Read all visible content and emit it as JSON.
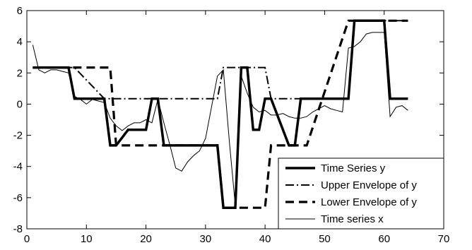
{
  "chart_data": {
    "type": "line",
    "title": "",
    "xlabel": "",
    "ylabel": "",
    "xlim": [
      0,
      70
    ],
    "ylim": [
      -8,
      6
    ],
    "xticks": [
      "0",
      "10",
      "20",
      "30",
      "40",
      "50",
      "60",
      "70"
    ],
    "yticks": [
      "6",
      "4",
      "2",
      "0",
      "-2",
      "-4",
      "-6",
      "-8"
    ],
    "grid": false,
    "legend_position": "bottom-right",
    "series": [
      {
        "name": "Time Series y",
        "style": "solid-thick",
        "color": "#000000",
        "x": [
          1,
          7,
          8,
          13,
          14,
          15,
          17,
          20,
          21,
          22,
          23,
          32,
          33,
          35,
          36,
          37,
          38,
          39,
          40,
          41,
          44,
          45,
          46,
          47,
          54,
          55,
          60,
          61,
          64
        ],
        "y": [
          2.35,
          2.35,
          0.35,
          0.35,
          -2.65,
          -2.65,
          -1.65,
          -1.65,
          0.35,
          0.35,
          -2.65,
          -2.65,
          -6.65,
          -6.65,
          2.35,
          2.35,
          -1.65,
          -1.65,
          0.35,
          0.35,
          -2.65,
          -2.65,
          0.35,
          0.35,
          0.35,
          5.35,
          5.35,
          0.35,
          0.35
        ]
      },
      {
        "name": "Upper Envelope of y",
        "style": "dash-dot",
        "color": "#000000",
        "x": [
          1,
          7,
          8,
          13,
          14,
          15,
          17,
          20,
          21,
          22,
          23,
          32,
          33,
          35,
          36,
          37,
          38,
          39,
          40,
          41,
          44,
          45,
          46,
          47,
          54,
          55,
          60,
          61,
          64
        ],
        "y": [
          2.35,
          2.35,
          2.35,
          0.35,
          0.35,
          0.35,
          0.35,
          0.35,
          0.35,
          0.35,
          0.35,
          0.35,
          2.35,
          2.35,
          2.35,
          2.35,
          2.35,
          2.35,
          2.35,
          0.35,
          0.35,
          0.35,
          0.35,
          0.35,
          0.35,
          5.35,
          5.35,
          5.35,
          5.35
        ]
      },
      {
        "name": "Lower Envelope of y",
        "style": "dashed-thick",
        "color": "#000000",
        "x": [
          1,
          7,
          8,
          13,
          14,
          15,
          17,
          20,
          21,
          22,
          23,
          32,
          33,
          35,
          36,
          37,
          38,
          39,
          40,
          41,
          44,
          45,
          46,
          47,
          54,
          55,
          60,
          61,
          64
        ],
        "y": [
          2.35,
          2.35,
          2.35,
          2.35,
          2.35,
          -2.65,
          -2.65,
          -2.65,
          -2.65,
          -2.65,
          -2.65,
          -2.65,
          -6.65,
          -6.65,
          -6.65,
          -6.65,
          -6.65,
          -6.65,
          -6.65,
          -2.65,
          -2.65,
          -2.65,
          -2.65,
          -2.65,
          5.35,
          5.35,
          5.35,
          5.35,
          5.35
        ]
      },
      {
        "name": "Time series x",
        "style": "solid-thin",
        "color": "#000000",
        "x": [
          1,
          2,
          3,
          4,
          5,
          6,
          7,
          8,
          9,
          10,
          11,
          12,
          13,
          14,
          15,
          16,
          17,
          18,
          19,
          20,
          21,
          22,
          23,
          24,
          25,
          26,
          27,
          28,
          29,
          30,
          31,
          32,
          33,
          34,
          35,
          36,
          37,
          38,
          39,
          40,
          41,
          42,
          43,
          44,
          45,
          46,
          47,
          48,
          49,
          50,
          51,
          52,
          53,
          54,
          55,
          56,
          57,
          58,
          59,
          60,
          61,
          62,
          63,
          64
        ],
        "y": [
          3.8,
          2.2,
          2.0,
          2.2,
          2.2,
          2.1,
          2.0,
          0.5,
          0.3,
          0.0,
          0.3,
          0.2,
          0.1,
          -0.9,
          -1.4,
          -1.7,
          -1.4,
          -1.2,
          -1.2,
          -1.0,
          -1.2,
          0.3,
          -1.2,
          -2.6,
          -4.1,
          -4.3,
          -3.7,
          -3.3,
          -3.0,
          -2.2,
          -0.2,
          1.8,
          2.2,
          -2.4,
          -6.5,
          1.8,
          0.7,
          -0.2,
          -0.5,
          -0.4,
          -0.7,
          -0.7,
          -0.6,
          -0.8,
          -0.9,
          -0.9,
          -0.8,
          -0.5,
          -0.3,
          -0.1,
          -0.3,
          -0.4,
          -0.5,
          3.6,
          3.7,
          4.0,
          4.5,
          4.6,
          4.6,
          4.6,
          -0.8,
          -0.2,
          -0.1,
          -0.4
        ]
      }
    ]
  }
}
